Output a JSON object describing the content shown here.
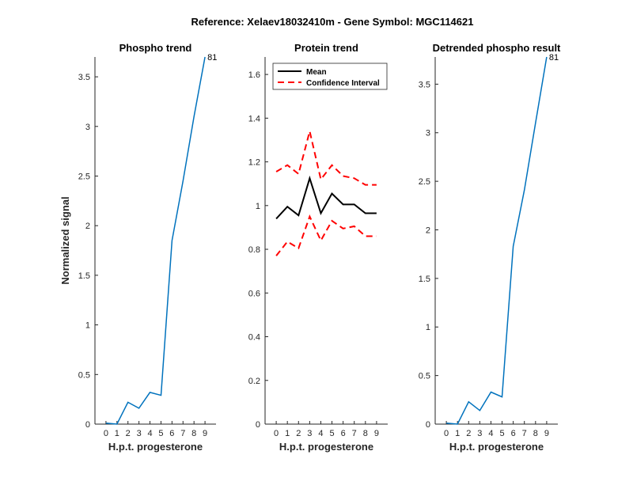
{
  "figure": {
    "title": "Reference:  Xelaev18032410m - Gene Symbol:  MGC114621"
  },
  "colors": {
    "phospho_line": "#0072BD",
    "mean_line": "#000000",
    "ci_line": "#FF0000",
    "axis": "#262626"
  },
  "chart_data": [
    {
      "id": "phospho",
      "type": "line",
      "title": "Phospho trend",
      "xlabel": "H.p.t. progesterone",
      "ylabel": "Normalized signal",
      "xlim": [
        -1,
        10
      ],
      "ylim": [
        0,
        3.7
      ],
      "xticks": [
        0,
        1,
        2,
        3,
        4,
        5,
        6,
        7,
        8,
        9
      ],
      "yticks": [
        0,
        0.5,
        1,
        1.5,
        2,
        2.5,
        3,
        3.5
      ],
      "series": [
        {
          "x": [
            0,
            1,
            2,
            3,
            4,
            5,
            6,
            7,
            8,
            9
          ],
          "y": [
            0.01,
            0.0,
            0.22,
            0.16,
            0.32,
            0.29,
            1.85,
            2.45,
            3.1,
            3.7
          ],
          "color": "#0072BD",
          "style": "solid"
        }
      ],
      "end_label": "81",
      "grid": false
    },
    {
      "id": "protein",
      "type": "line",
      "title": "Protein trend",
      "xlabel": "H.p.t. progesterone",
      "ylabel": "",
      "xlim": [
        -1,
        10
      ],
      "ylim": [
        0,
        1.68
      ],
      "xticks": [
        0,
        1,
        2,
        3,
        4,
        5,
        6,
        7,
        8,
        9
      ],
      "yticks": [
        0,
        0.2,
        0.4,
        0.6,
        0.8,
        1,
        1.2,
        1.4,
        1.6
      ],
      "series": [
        {
          "name": "Mean",
          "x": [
            0,
            1,
            2,
            3,
            4,
            5,
            6,
            7,
            8,
            9
          ],
          "y": [
            0.94,
            0.995,
            0.955,
            1.125,
            0.965,
            1.055,
            1.005,
            1.005,
            0.965,
            0.965
          ],
          "color": "#000000",
          "style": "solid"
        },
        {
          "name": "Confidence Interval",
          "x": [
            0,
            1,
            2,
            3,
            4,
            5,
            6,
            7,
            8,
            9
          ],
          "y": [
            1.155,
            1.185,
            1.145,
            1.34,
            1.12,
            1.185,
            1.135,
            1.125,
            1.095,
            1.095
          ],
          "color": "#FF0000",
          "style": "dashed"
        },
        {
          "name": "",
          "x": [
            0,
            1,
            2,
            3,
            4,
            5,
            6,
            7,
            8,
            9
          ],
          "y": [
            0.77,
            0.835,
            0.805,
            0.95,
            0.84,
            0.93,
            0.895,
            0.905,
            0.86,
            0.86
          ],
          "color": "#FF0000",
          "style": "dashed"
        }
      ],
      "legend": {
        "placement": "top-left",
        "entries": [
          {
            "label": "Mean",
            "color": "#000000",
            "style": "solid"
          },
          {
            "label": "Confidence Interval",
            "color": "#FF0000",
            "style": "dashed"
          }
        ]
      },
      "grid": false
    },
    {
      "id": "detrended",
      "type": "line",
      "title": "Detrended phospho result",
      "xlabel": "H.p.t. progesterone",
      "ylabel": "",
      "xlim": [
        -1,
        10
      ],
      "ylim": [
        0,
        3.78
      ],
      "xticks": [
        0,
        1,
        2,
        3,
        4,
        5,
        6,
        7,
        8,
        9
      ],
      "yticks": [
        0,
        0.5,
        1,
        1.5,
        2,
        2.5,
        3,
        3.5
      ],
      "series": [
        {
          "x": [
            0,
            1,
            2,
            3,
            4,
            5,
            6,
            7,
            8,
            9
          ],
          "y": [
            0.01,
            0.0,
            0.23,
            0.14,
            0.33,
            0.28,
            1.83,
            2.41,
            3.1,
            3.78
          ],
          "color": "#0072BD",
          "style": "solid"
        }
      ],
      "end_label": "81",
      "grid": false
    }
  ]
}
